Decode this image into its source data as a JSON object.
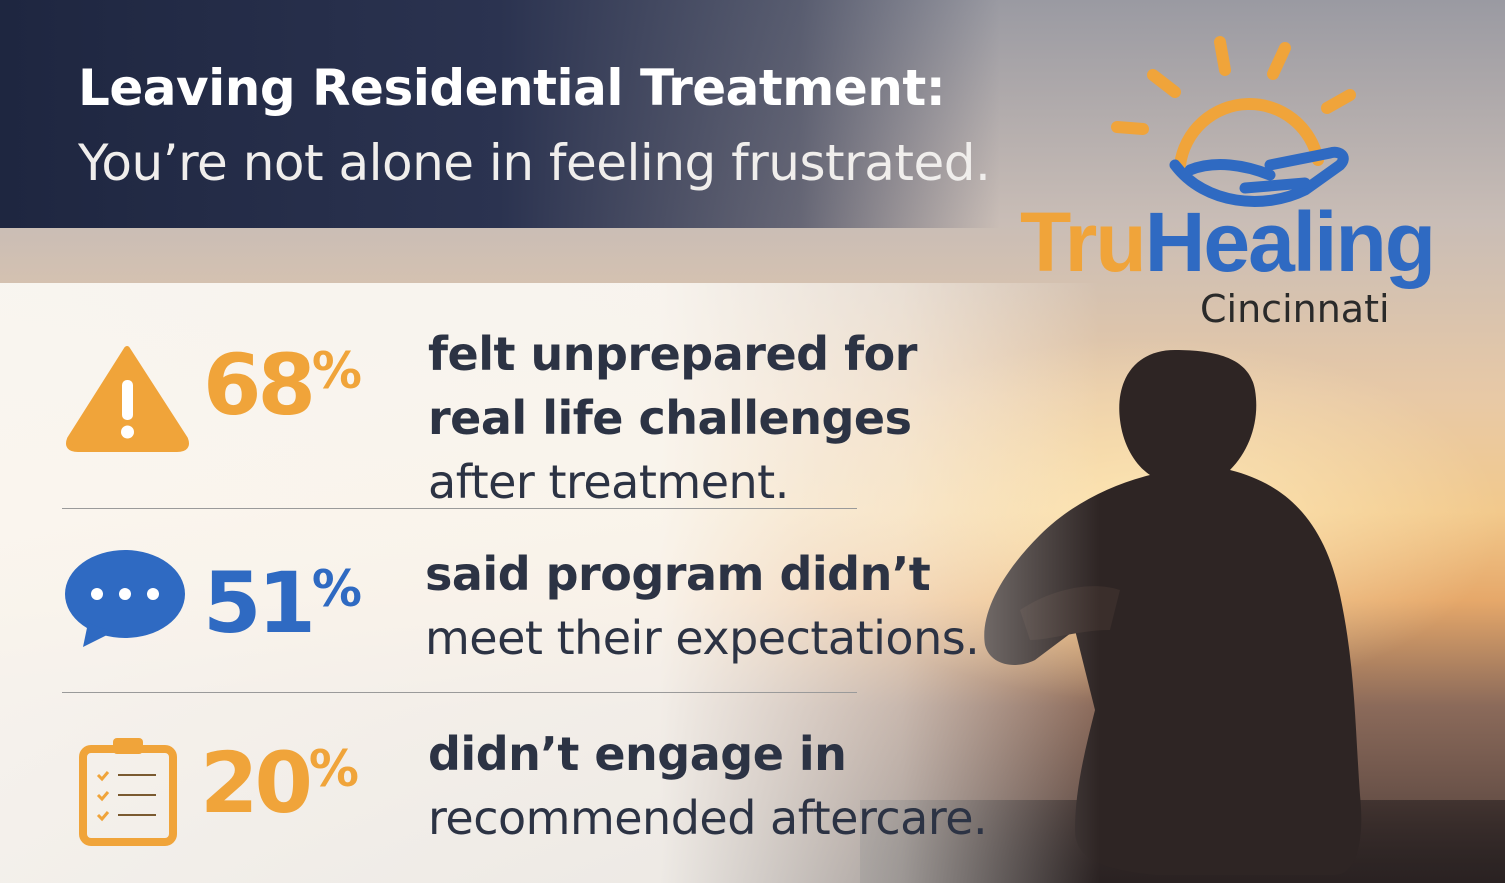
{
  "header": {
    "title": "Leaving Residential Treatment:",
    "subtitle": "You’re not alone in feeling frustrated."
  },
  "logo": {
    "brand_part1": "Tru",
    "brand_part2": "Healing",
    "location": "Cincinnati"
  },
  "colors": {
    "orange": "#f0a43a",
    "blue": "#2f6ac2",
    "dark_text": "#2c3344",
    "banner": "#1e2640"
  },
  "stats": [
    {
      "icon": "warning-triangle-icon",
      "percent": "68",
      "symbol": "%",
      "color": "#f0a43a",
      "bold_lines": [
        "felt unprepared for",
        "real life challenges"
      ],
      "normal_lines": [
        "after treatment."
      ]
    },
    {
      "icon": "chat-bubble-icon",
      "percent": "51",
      "symbol": "%",
      "color": "#2f6ac2",
      "bold_lines": [
        "said program didn’t"
      ],
      "normal_lines": [
        "meet their expectations."
      ]
    },
    {
      "icon": "clipboard-checklist-icon",
      "percent": "20",
      "symbol": "%",
      "color": "#f0a43a",
      "bold_lines": [
        "didn’t engage in"
      ],
      "normal_lines": [
        "recommended aftercare."
      ]
    }
  ]
}
